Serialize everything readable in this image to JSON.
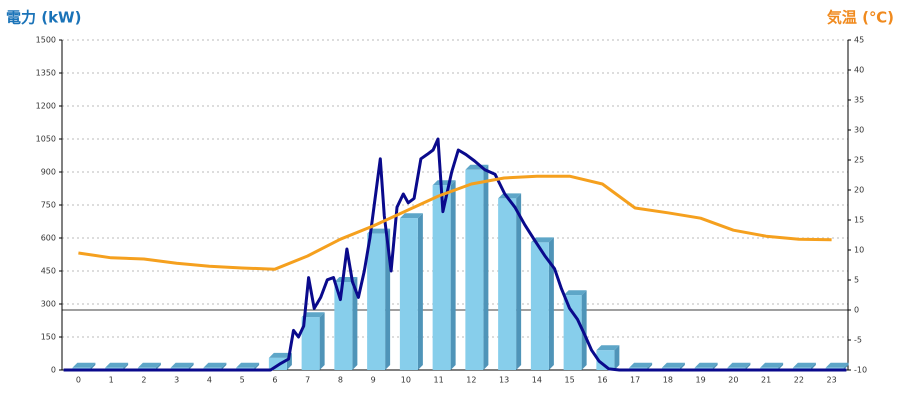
{
  "chart_data": {
    "type": "bar",
    "ylabel": "電力 (kW)",
    "y2label": "気温 (℃)",
    "categories": [
      "0",
      "1",
      "2",
      "3",
      "4",
      "5",
      "6",
      "7",
      "8",
      "9",
      "10",
      "11",
      "12",
      "13",
      "14",
      "15",
      "16",
      "17",
      "18",
      "19",
      "20",
      "21",
      "22",
      "23"
    ],
    "ylim": [
      0,
      1500
    ],
    "yticks": [
      0,
      150,
      300,
      450,
      600,
      750,
      900,
      1050,
      1200,
      1350,
      1500
    ],
    "y2lim": [
      -10,
      45
    ],
    "y2ticks": [
      -10,
      -5,
      0,
      5,
      10,
      15,
      20,
      25,
      30,
      35,
      40,
      45
    ],
    "grid": true,
    "series": [
      {
        "type": "bar",
        "color": "#87ceeb",
        "values": [
          10,
          10,
          10,
          10,
          10,
          10,
          55,
          240,
          400,
          620,
          690,
          840,
          910,
          780,
          580,
          340,
          90,
          10,
          10,
          10,
          10,
          10,
          10,
          10
        ]
      },
      {
        "type": "line",
        "color": "#0a0a8c",
        "x": [
          -0.45,
          5.87,
          6.18,
          6.42,
          6.57,
          6.72,
          6.88,
          7.03,
          7.2,
          7.4,
          7.6,
          7.79,
          8,
          8.2,
          8.37,
          8.55,
          8.73,
          8.9,
          9.22,
          9.34,
          9.55,
          9.73,
          9.92,
          10.07,
          10.25,
          10.46,
          10.65,
          10.83,
          10.98,
          11.13,
          11.4,
          11.6,
          11.83,
          12.1,
          12.41,
          12.72,
          13.02,
          13.33,
          13.63,
          13.93,
          14.24,
          14.54,
          14.75,
          15,
          15.24,
          15.46,
          15.67,
          15.9,
          16.2,
          16.52,
          23.45
        ],
        "values": [
          0,
          0,
          30,
          50,
          180,
          150,
          200,
          420,
          280,
          330,
          410,
          420,
          320,
          550,
          400,
          330,
          450,
          600,
          960,
          700,
          450,
          740,
          800,
          760,
          780,
          960,
          980,
          1000,
          1050,
          720,
          900,
          1000,
          980,
          950,
          910,
          890,
          800,
          740,
          660,
          590,
          520,
          460,
          370,
          280,
          230,
          160,
          90,
          40,
          5,
          0,
          0
        ]
      },
      {
        "type": "line",
        "color": "#f5a01e",
        "axis": "y2",
        "values": [
          9.5,
          8.7,
          8.5,
          7.8,
          7.3,
          7,
          6.8,
          9,
          11.8,
          14,
          16.5,
          19,
          21,
          22,
          22.3,
          22.3,
          21,
          17,
          16.2,
          15.3,
          13.3,
          12.3,
          11.8,
          11.7
        ]
      }
    ]
  }
}
